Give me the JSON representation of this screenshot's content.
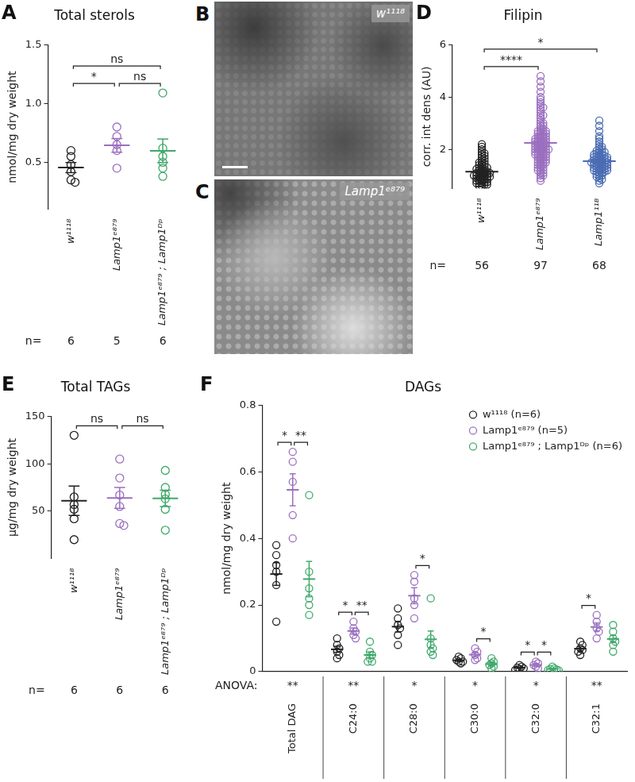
{
  "chart_data": [
    {
      "panel": "A",
      "type": "scatter",
      "title": "Total sterols",
      "y_label": "nmol/mg dry weight",
      "categories": [
        "w¹¹¹⁸",
        "Lamp1ᵉ⁸⁷⁹",
        "Lamp1ᵉ⁸⁷⁹ ; Lamp1ᴰᵖ"
      ],
      "values": [
        [
          0.6,
          0.55,
          0.48,
          0.42,
          0.35,
          0.33
        ],
        [
          0.8,
          0.72,
          0.65,
          0.6,
          0.45
        ],
        [
          1.09,
          0.62,
          0.55,
          0.5,
          0.45,
          0.38
        ]
      ],
      "mean": [
        0.455,
        0.644,
        0.598
      ],
      "error": [
        0.043,
        0.058,
        0.1
      ],
      "colors": [
        "#222222",
        "#9a6fbf",
        "#3fa86b"
      ],
      "marker": "circle",
      "ylim": [
        0.1,
        1.5
      ],
      "yticks": [
        0.5,
        {
          "value": 1,
          "label": "1.0"
        },
        1.5
      ],
      "grid": false,
      "n_label": "n=",
      "n": [
        6,
        5,
        6
      ],
      "comparisons": [
        {
          "from": 0,
          "to": 1,
          "label": "*"
        },
        {
          "from": 1,
          "to": 2,
          "label": "ns"
        },
        {
          "from": 0,
          "to": 2,
          "label": "ns"
        }
      ]
    },
    {
      "panel": "D",
      "type": "scatter",
      "title": "Filipin",
      "y_label": "corr. int dens (AU)",
      "categories": [
        "w¹¹¹⁸",
        "Lamp1ᵉ⁸⁷⁹",
        "Lamp1¹¹ᴮ"
      ],
      "values": [
        [
          2.2,
          2.1,
          2.0,
          1.9,
          1.85,
          1.8,
          1.75,
          1.7,
          1.65,
          1.6,
          1.55,
          1.5,
          1.5,
          1.45,
          1.4,
          1.4,
          1.35,
          1.3,
          1.3,
          1.3,
          1.25,
          1.25,
          1.2,
          1.2,
          1.15,
          1.15,
          1.1,
          1.1,
          1.1,
          1.05,
          1.05,
          1.0,
          1.0,
          1.0,
          0.95,
          0.95,
          0.9,
          0.9,
          0.9,
          0.85,
          0.85,
          0.8,
          0.8,
          0.8,
          0.75,
          0.75,
          0.7,
          0.7,
          0.7,
          0.65,
          0.65,
          0.6,
          0.6,
          0.95,
          1.0,
          1.1
        ],
        [
          4.8,
          4.6,
          4.4,
          4.2,
          4.0,
          3.9,
          3.8,
          3.7,
          3.6,
          3.5,
          3.4,
          3.3,
          3.2,
          3.1,
          3.0,
          3.0,
          2.9,
          2.9,
          2.8,
          2.8,
          2.7,
          2.7,
          2.7,
          2.6,
          2.6,
          2.6,
          2.5,
          2.5,
          2.5,
          2.4,
          2.4,
          2.4,
          2.4,
          2.3,
          2.3,
          2.3,
          2.3,
          2.2,
          2.2,
          2.2,
          2.2,
          2.1,
          2.1,
          2.1,
          2.1,
          2.0,
          2.0,
          2.0,
          2.0,
          2.0,
          1.9,
          1.9,
          1.9,
          1.9,
          1.8,
          1.8,
          1.8,
          1.8,
          1.8,
          1.7,
          1.7,
          1.7,
          1.7,
          1.6,
          1.6,
          1.6,
          1.6,
          1.5,
          1.5,
          1.5,
          1.5,
          1.4,
          1.4,
          1.4,
          1.3,
          1.3,
          1.3,
          1.2,
          1.2,
          1.2,
          1.1,
          1.1,
          1.0,
          1.0,
          0.9,
          0.8,
          2.2,
          2.3,
          2.4,
          2.5,
          2.6,
          2.7,
          2.0,
          1.9,
          2.1,
          3.3,
          3.6
        ],
        [
          3.1,
          2.9,
          2.7,
          2.5,
          2.4,
          2.3,
          2.2,
          2.1,
          2.1,
          2.0,
          2.0,
          1.95,
          1.9,
          1.9,
          1.85,
          1.8,
          1.8,
          1.75,
          1.75,
          1.7,
          1.7,
          1.7,
          1.65,
          1.65,
          1.6,
          1.6,
          1.6,
          1.55,
          1.55,
          1.5,
          1.5,
          1.5,
          1.5,
          1.45,
          1.45,
          1.4,
          1.4,
          1.4,
          1.35,
          1.35,
          1.3,
          1.3,
          1.3,
          1.25,
          1.25,
          1.2,
          1.2,
          1.2,
          1.15,
          1.15,
          1.1,
          1.1,
          1.05,
          1.0,
          1.0,
          0.95,
          0.9,
          0.85,
          0.8,
          0.7,
          1.6,
          1.5,
          1.4,
          1.7,
          1.3,
          1.8,
          1.2,
          1.9
        ]
      ],
      "mean": [
        1.15,
        2.25,
        1.55
      ],
      "error": [
        0.05,
        0.08,
        0.06
      ],
      "colors": [
        "#222222",
        "#9a6fbf",
        "#4a6cb3"
      ],
      "marker": "circle",
      "ylim": [
        0.5,
        6
      ],
      "yticks": [
        2,
        4,
        6
      ],
      "grid": false,
      "n_label": "n=",
      "n": [
        56,
        97,
        68
      ],
      "comparisons": [
        {
          "from": 0,
          "to": 1,
          "label": "****"
        },
        {
          "from": 0,
          "to": 2,
          "label": "*"
        }
      ]
    },
    {
      "panel": "E",
      "type": "scatter",
      "title": "Total TAGs",
      "y_label": "μg/mg dry weight",
      "categories": [
        "w¹¹¹⁸",
        "Lamp1ᵉ⁸⁷⁹",
        "Lamp1ᵉ⁸⁷⁹ ; Lamp1ᴰᵖ"
      ],
      "values": [
        [
          130,
          65,
          57,
          52,
          42,
          20
        ],
        [
          105,
          85,
          67,
          55,
          37,
          35
        ],
        [
          93,
          75,
          68,
          63,
          52,
          30
        ]
      ],
      "mean": [
        61,
        64,
        63.5
      ],
      "error": [
        15.5,
        11,
        8.6
      ],
      "colors": [
        "#222222",
        "#9a6fbf",
        "#3fa86b"
      ],
      "marker": "circle",
      "ylim": [
        0,
        150
      ],
      "yticks": [
        50,
        100,
        150
      ],
      "grid": false,
      "n_label": "n=",
      "n": [
        6,
        6,
        6
      ],
      "comparisons": [
        {
          "from": 0,
          "to": 1,
          "label": "ns"
        },
        {
          "from": 1,
          "to": 2,
          "label": "ns"
        }
      ]
    },
    {
      "panel": "F",
      "type": "scatter",
      "title": "DAGs",
      "y_label": "nmol/mg dry weight",
      "categories": [
        "Total DAG",
        "C24:0",
        "C28:0",
        "C30:0",
        "C32:0",
        "C32:1"
      ],
      "series": [
        {
          "name": "w¹¹¹⁸ (n=6)",
          "color": "#222222",
          "values": [
            [
              0.38,
              0.35,
              0.32,
              0.3,
              0.26,
              0.15
            ],
            [
              0.1,
              0.08,
              0.07,
              0.06,
              0.05,
              0.04
            ],
            [
              0.19,
              0.16,
              0.14,
              0.13,
              0.11,
              0.08
            ],
            [
              0.045,
              0.04,
              0.035,
              0.03,
              0.03,
              0.025
            ],
            [
              0.02,
              0.015,
              0.012,
              0.01,
              0.008,
              0.005
            ],
            [
              0.09,
              0.08,
              0.07,
              0.065,
              0.06,
              0.05
            ]
          ],
          "mean": [
            0.293,
            0.067,
            0.135,
            0.034,
            0.012,
            0.069
          ],
          "error": [
            0.034,
            0.009,
            0.016,
            0.003,
            0.002,
            0.006
          ]
        },
        {
          "name": "Lamp1ᵉ⁸⁷⁹ (n=5)",
          "color": "#9a6fbf",
          "values": [
            [
              0.66,
              0.63,
              0.57,
              0.47,
              0.4
            ],
            [
              0.15,
              0.13,
              0.12,
              0.11,
              0.1
            ],
            [
              0.29,
              0.27,
              0.22,
              0.2,
              0.16
            ],
            [
              0.07,
              0.06,
              0.05,
              0.04,
              0.035
            ],
            [
              0.03,
              0.025,
              0.02,
              0.015,
              0.01
            ],
            [
              0.17,
              0.15,
              0.13,
              0.12,
              0.1
            ]
          ],
          "mean": [
            0.546,
            0.122,
            0.228,
            0.051,
            0.02,
            0.134
          ],
          "error": [
            0.048,
            0.009,
            0.024,
            0.006,
            0.004,
            0.012
          ]
        },
        {
          "name": "Lamp1ᵉ⁸⁷⁹ ; Lamp1ᴰᵖ (n=6)",
          "color": "#3fa86b",
          "values": [
            [
              0.53,
              0.3,
              0.25,
              0.22,
              0.2,
              0.17
            ],
            [
              0.09,
              0.06,
              0.05,
              0.04,
              0.03,
              0.03
            ],
            [
              0.22,
              0.1,
              0.08,
              0.07,
              0.06,
              0.05
            ],
            [
              0.04,
              0.03,
              0.025,
              0.02,
              0.015,
              0.01
            ],
            [
              0.015,
              0.01,
              0.008,
              0.006,
              0.005,
              0.004
            ],
            [
              0.14,
              0.12,
              0.1,
              0.09,
              0.08,
              0.06
            ]
          ],
          "mean": [
            0.278,
            0.05,
            0.097,
            0.023,
            0.008,
            0.098
          ],
          "error": [
            0.053,
            0.009,
            0.025,
            0.005,
            0.002,
            0.011
          ]
        }
      ],
      "marker": "circle",
      "legend": "top-right",
      "ylim": [
        0,
        0.8
      ],
      "yticks": [
        0,
        0.2,
        0.4,
        0.6,
        0.8
      ],
      "grid": false,
      "anova_label": "ANOVA:",
      "anova": [
        "**",
        "**",
        "*",
        "*",
        "*",
        "**"
      ],
      "comparisons": [
        {
          "category": 0,
          "from": 0,
          "to": 1,
          "label": "*"
        },
        {
          "category": 0,
          "from": 1,
          "to": 2,
          "label": "**"
        },
        {
          "category": 1,
          "from": 0,
          "to": 1,
          "label": "*"
        },
        {
          "category": 1,
          "from": 1,
          "to": 2,
          "label": "**"
        },
        {
          "category": 2,
          "from": 1,
          "to": 2,
          "label": "*"
        },
        {
          "category": 3,
          "from": 1,
          "to": 2,
          "label": "*"
        },
        {
          "category": 4,
          "from": 0,
          "to": 1,
          "label": "*"
        },
        {
          "category": 4,
          "from": 1,
          "to": 2,
          "label": "*"
        },
        {
          "category": 5,
          "from": 0,
          "to": 1,
          "label": "*"
        }
      ]
    }
  ],
  "images": [
    {
      "panel": "B",
      "label": "w¹¹¹⁸"
    },
    {
      "panel": "C",
      "label": "Lamp1ᵉ⁸⁷⁹"
    }
  ]
}
